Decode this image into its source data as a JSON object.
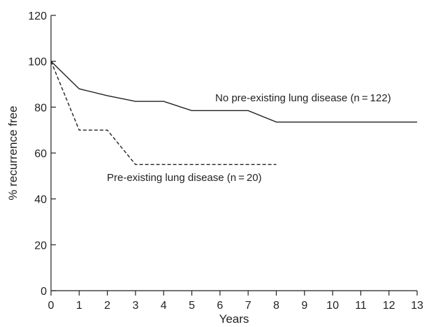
{
  "chart_data": {
    "type": "line",
    "xlabel": "Years",
    "ylabel": "% recurrence free",
    "xlim": [
      0,
      13
    ],
    "ylim": [
      0,
      120
    ],
    "x_ticks": [
      0,
      1,
      2,
      3,
      4,
      5,
      6,
      7,
      8,
      9,
      10,
      11,
      12,
      13
    ],
    "y_ticks": [
      0,
      20,
      40,
      60,
      80,
      100,
      120
    ],
    "grid": false,
    "series": [
      {
        "name": "No pre-existing lung disease (n = 122)",
        "style": "solid",
        "color": "#231f20",
        "x": [
          0,
          1,
          2,
          3,
          4,
          5,
          6,
          7,
          8,
          13
        ],
        "y": [
          100,
          88,
          85,
          82.5,
          82.5,
          78.5,
          78.5,
          78.5,
          73.5,
          73.5
        ]
      },
      {
        "name": "Pre-existing lung disease (n = 20)",
        "style": "dashed",
        "color": "#231f20",
        "x": [
          0,
          1,
          2,
          3,
          8
        ],
        "y": [
          100,
          70,
          70,
          55,
          55
        ]
      }
    ],
    "annotations": [
      {
        "text": "No pre-existing lung disease (n = 122)",
        "series": 0
      },
      {
        "text": "Pre-existing lung disease (n = 20)",
        "series": 1
      }
    ]
  }
}
